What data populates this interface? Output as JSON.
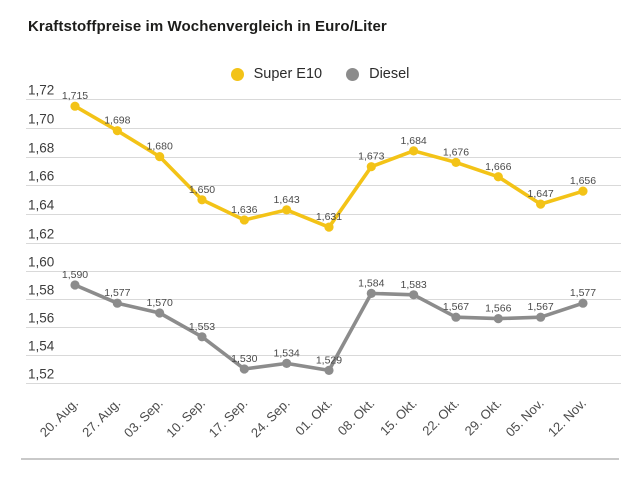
{
  "title": "Kraftstoffpreise im Wochenvergleich in Euro/Liter",
  "legend": [
    {
      "label": "Super E10",
      "color": "#F3C317"
    },
    {
      "label": "Diesel",
      "color": "#8C8C8C"
    }
  ],
  "chart_data": {
    "type": "line",
    "title": "Kraftstoffpreise im Wochenvergleich in Euro/Liter",
    "unit": "Euro/Liter",
    "categories": [
      "20. Aug.",
      "27. Aug.",
      "03. Sep.",
      "10. Sep.",
      "17. Sep.",
      "24. Sep.",
      "01. Okt.",
      "08. Okt.",
      "15. Okt.",
      "22. Okt.",
      "29. Okt.",
      "05. Nov.",
      "12. Nov."
    ],
    "series": [
      {
        "name": "Super E10",
        "color": "#F3C317",
        "values": [
          1.715,
          1.698,
          1.68,
          1.65,
          1.636,
          1.643,
          1.631,
          1.673,
          1.684,
          1.676,
          1.666,
          1.647,
          1.656
        ],
        "value_labels": [
          "1,715",
          "1,698",
          "1,680",
          "1,650",
          "1,636",
          "1,643",
          "1,631",
          "1,673",
          "1,684",
          "1,676",
          "1,666",
          "1,647",
          "1,656"
        ],
        "axis": {
          "min": 1.62,
          "max": 1.72,
          "ticks": [
            "1,72",
            "1,70",
            "1,68",
            "1,66",
            "1,64",
            "1,62"
          ]
        }
      },
      {
        "name": "Diesel",
        "color": "#8C8C8C",
        "values": [
          1.59,
          1.577,
          1.57,
          1.553,
          1.53,
          1.534,
          1.529,
          1.584,
          1.583,
          1.567,
          1.566,
          1.567,
          1.577
        ],
        "value_labels": [
          "1,590",
          "1,577",
          "1,570",
          "1,553",
          "1,530",
          "1,534",
          "1,529",
          "1,584",
          "1,583",
          "1,567",
          "1,566",
          "1,567",
          "1,577"
        ],
        "axis": {
          "min": 1.52,
          "max": 1.6,
          "ticks": [
            "1,60",
            "1,58",
            "1,56",
            "1,54",
            "1,52"
          ]
        }
      }
    ],
    "grid": true,
    "legend_position": "top-center"
  },
  "colors": {
    "grid": "#D9D9D9",
    "tick_text": "#3C3C3C",
    "value_label_text": "#4B4B4B",
    "x_label_text": "#4B4B4B",
    "divider": "#C9C9C9",
    "title_text": "#1D1D1B",
    "background": "#FFFFFF"
  }
}
